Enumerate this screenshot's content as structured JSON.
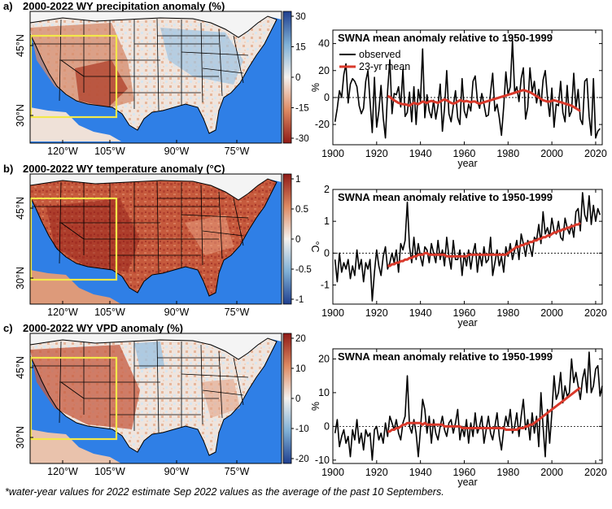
{
  "panels": [
    {
      "label": "a)",
      "map_title": "2000-2022 WY precipitation anomaly (%)",
      "colorbar": {
        "ticks": [
          "30",
          "15",
          "0",
          "-15",
          "-30"
        ],
        "scale": "brown-blue"
      },
      "lat_labels": [
        "45°N",
        "30°N"
      ],
      "lon_labels": [
        "120°W",
        "105°W",
        "90°W",
        "75°W"
      ]
    },
    {
      "label": "b)",
      "map_title": "2000-2022 WY temperature anomaly (°C)",
      "colorbar": {
        "ticks": [
          "1",
          "0.5",
          "0",
          "-0.5",
          "-1"
        ],
        "scale": "blue-red"
      },
      "lat_labels": [
        "45°N",
        "30°N"
      ],
      "lon_labels": [
        "120°W",
        "105°W",
        "90°W",
        "75°W"
      ]
    },
    {
      "label": "c)",
      "map_title": "2000-2022 WY VPD anomaly (%)",
      "colorbar": {
        "ticks": [
          "20",
          "10",
          "0",
          "-10",
          "-20"
        ],
        "scale": "blue-red"
      },
      "lat_labels": [
        "45°N",
        "30°N"
      ],
      "lon_labels": [
        "120°W",
        "105°W",
        "90°W",
        "75°W"
      ]
    }
  ],
  "colors": {
    "observed": "#000000",
    "mean": "#d9392b",
    "ocean": "#2f7fe6",
    "box": "#f3e84a",
    "red_dark": "#8f1a16",
    "red_mid": "#c85438",
    "red_light": "#ecc0a5",
    "blue_light": "#cfe3f0",
    "blue_dark": "#1f3f8f"
  },
  "legend": {
    "observed": "observed",
    "mean": "23-yr mean"
  },
  "footnote": "*water-year values for 2022 estimate Sep 2022 values as the average of the past 10 Septembers.",
  "chart_data": [
    {
      "type": "line",
      "title": "SWNA mean anomaly relative to 1950-1999",
      "xlabel": "year",
      "ylabel": "%",
      "xlim": [
        1900,
        2023
      ],
      "ylim": [
        -35,
        50
      ],
      "xticks": [
        1900,
        1920,
        1940,
        1960,
        1980,
        2000,
        2020
      ],
      "yticks": [
        -20,
        0,
        20,
        40
      ],
      "zero_line": true,
      "series": [
        {
          "name": "observed",
          "x_start": 1901,
          "values": [
            -18,
            -8,
            5,
            0,
            17,
            25,
            -4,
            10,
            14,
            12,
            8,
            -6,
            -12,
            -8,
            12,
            20,
            -3,
            -26,
            15,
            -22,
            -10,
            9,
            -15,
            -30,
            5,
            28,
            -12,
            3,
            2,
            8,
            -7,
            21,
            -14,
            -11,
            4,
            -18,
            8,
            -20,
            6,
            -3,
            36,
            -15,
            2,
            -10,
            -15,
            -2,
            -16,
            -6,
            10,
            -25,
            -8,
            20,
            -12,
            -18,
            -6,
            5,
            -15,
            -20,
            14,
            -10,
            -15,
            -5,
            -10,
            12,
            16,
            -2,
            -8,
            3,
            -5,
            -14,
            -13,
            4,
            18,
            -10,
            -5,
            -15,
            -28,
            -7,
            19,
            2,
            8,
            42,
            4,
            8,
            -3,
            14,
            22,
            -16,
            -7,
            22,
            4,
            12,
            -4,
            6,
            -6,
            13,
            20,
            0,
            -14,
            7,
            -22,
            -5,
            -6,
            12,
            -11,
            -18,
            9,
            -14,
            -10,
            18,
            -8,
            6,
            -16,
            -20,
            12,
            14,
            -14,
            -28,
            14,
            -30,
            -25,
            -23
          ]
        },
        {
          "name": "23-yr mean",
          "x_start": 1925,
          "values": [
            1,
            0.5,
            -1,
            -2,
            -3,
            -4,
            -4.5,
            -5,
            -5,
            -5.5,
            -6,
            -5,
            -4,
            -4.5,
            -5,
            -4,
            -3,
            -3.5,
            -4,
            -3,
            -2.5,
            -3,
            -3.5,
            -4,
            -3,
            -2,
            -1.5,
            -2,
            -3,
            -4,
            -4.5,
            -4,
            -3,
            -2,
            -2.5,
            -3,
            -2.5,
            -3,
            -3.5,
            -3,
            -3,
            -4,
            -4.5,
            -4,
            -3.5,
            -3,
            -2.5,
            -2,
            -1.5,
            -1,
            -0.5,
            0,
            0.5,
            1,
            1.5,
            2,
            2.5,
            3,
            3.5,
            4,
            4.5,
            5,
            5.5,
            5,
            4.5,
            4,
            3,
            2,
            1,
            0,
            -1,
            -2,
            -2.5,
            -3,
            -3,
            -2.5,
            -2,
            -2.5,
            -3,
            -3.5,
            -4,
            -4.5,
            -5,
            -5.5,
            -6,
            -7,
            -8,
            -9,
            -10
          ]
        }
      ]
    },
    {
      "type": "line",
      "title": "SWNA mean anomaly relative to 1950-1999",
      "xlabel": "year",
      "ylabel": "°C",
      "xlim": [
        1900,
        2023
      ],
      "ylim": [
        -1.6,
        2.0
      ],
      "xticks": [
        1900,
        1920,
        1940,
        1960,
        1980,
        2000,
        2020
      ],
      "yticks": [
        -1,
        0,
        1,
        2
      ],
      "zero_line": true,
      "series": [
        {
          "name": "observed",
          "x_start": 1901,
          "values": [
            -0.2,
            -0.9,
            0,
            -0.6,
            -0.3,
            -0.5,
            -0.2,
            -0.8,
            -0.4,
            -0.7,
            0.1,
            -0.5,
            -0.2,
            -0.9,
            -0.3,
            -0.5,
            -0.2,
            -1.5,
            -0.6,
            0.1,
            -0.4,
            -0.7,
            -0.1,
            0.2,
            -0.5,
            -0.3,
            0,
            -0.3,
            0.1,
            -0.6,
            0.3,
            0.1,
            0.4,
            1.6,
            0.2,
            -0.3,
            0.5,
            -0.2,
            0.3,
            -0.1,
            -0.4,
            0.2,
            0.1,
            -0.3,
            0.3,
            0,
            -0.3,
            0.4,
            -0.2,
            0.1,
            -0.4,
            0.5,
            -0.1,
            -0.5,
            0.4,
            -0.2,
            -0.2,
            0.1,
            -0.7,
            0,
            -0.4,
            0.1,
            -0.5,
            0,
            0.3,
            -0.6,
            0,
            -0.4,
            0.2,
            -0.3,
            -0.2,
            0.5,
            -0.7,
            -0.3,
            0.1,
            -0.4,
            -0.1,
            -0.6,
            0.2,
            -0.1,
            0.3,
            -0.2,
            0.1,
            0.4,
            -0.2,
            0.6,
            0.3,
            -0.1,
            0.4,
            0.2,
            -0.1,
            0.5,
            0.4,
            0.9,
            0.3,
            1.3,
            0.6,
            0.8,
            0.5,
            1.1,
            0.7,
            0.6,
            1.0,
            0.5,
            0.4,
            1.1,
            0.8,
            0.6,
            0.9,
            0.5,
            1.3,
            1.4,
            0.7,
            1.9,
            1.2,
            1.0,
            1.8,
            0.9,
            1.5,
            1.0,
            1.4,
            1.2
          ]
        },
        {
          "name": "23-yr mean",
          "x_start": 1925,
          "values": [
            -0.4,
            -0.4,
            -0.35,
            -0.35,
            -0.3,
            -0.3,
            -0.25,
            -0.25,
            -0.2,
            -0.2,
            -0.15,
            -0.15,
            -0.1,
            -0.1,
            -0.05,
            -0.05,
            -0.05,
            0,
            0,
            -0.05,
            -0.05,
            -0.05,
            -0.05,
            -0.05,
            -0.05,
            -0.05,
            -0.05,
            -0.1,
            -0.1,
            -0.1,
            -0.1,
            -0.1,
            -0.1,
            -0.1,
            -0.1,
            -0.1,
            -0.1,
            -0.05,
            -0.05,
            -0.05,
            -0.05,
            -0.05,
            -0.05,
            -0.05,
            -0.05,
            -0.05,
            -0.05,
            -0.05,
            -0.05,
            -0.05,
            -0.05,
            -0.05,
            -0.05,
            -0.05,
            -0.05,
            0,
            0.05,
            0.1,
            0.15,
            0.2,
            0.2,
            0.25,
            0.25,
            0.3,
            0.3,
            0.35,
            0.35,
            0.4,
            0.4,
            0.45,
            0.45,
            0.5,
            0.5,
            0.55,
            0.55,
            0.6,
            0.65,
            0.65,
            0.7,
            0.7,
            0.75,
            0.75,
            0.8,
            0.8,
            0.85,
            0.85,
            0.9,
            0.9,
            0.95
          ]
        }
      ]
    },
    {
      "type": "line",
      "title": "SWNA mean anomaly relative to 1950-1999",
      "xlabel": "year",
      "ylabel": "%",
      "xlim": [
        1900,
        2023
      ],
      "ylim": [
        -11,
        23
      ],
      "xticks": [
        1900,
        1920,
        1940,
        1960,
        1980,
        2000,
        2020
      ],
      "yticks": [
        -10,
        0,
        10,
        20
      ],
      "zero_line": true,
      "series": [
        {
          "name": "observed",
          "x_start": 1901,
          "values": [
            -2,
            2,
            -6,
            -3,
            -1,
            -5,
            -3,
            -9,
            -1,
            -4,
            2,
            -5,
            -2,
            -7,
            -1,
            -3,
            -2,
            -10,
            -1,
            0,
            -4,
            -2,
            -5,
            1,
            -3,
            3,
            1,
            -1,
            2,
            -2,
            -4,
            1,
            3,
            15,
            0,
            -2,
            2,
            -2,
            -9,
            -1,
            8,
            5,
            -2,
            3,
            -5,
            2,
            -2,
            -4,
            0,
            3,
            -1,
            -3,
            1,
            2,
            -2,
            1,
            5,
            -4,
            0,
            -3,
            2,
            -5,
            1,
            -3,
            4,
            -2,
            0,
            3,
            -5,
            -1,
            3,
            -2,
            -4,
            0,
            4,
            -3,
            -7,
            -1,
            3,
            0,
            5,
            -2,
            0,
            4,
            -3,
            3,
            8,
            -1,
            2,
            -4,
            4,
            -2,
            3,
            -6,
            10,
            0,
            -9,
            5,
            -5,
            4,
            15,
            8,
            10,
            16,
            7,
            12,
            9,
            10,
            20,
            13,
            16,
            12,
            8,
            14,
            17,
            10,
            22,
            10,
            12,
            17,
            18,
            9,
            12
          ]
        },
        {
          "name": "23-yr mean",
          "x_start": 1925,
          "values": [
            -1.5,
            -1.5,
            -1,
            -1,
            -0.5,
            -0.5,
            0,
            0.5,
            0.5,
            1,
            1,
            1,
            1,
            1,
            1,
            1,
            0.5,
            1,
            0.5,
            0.5,
            0.5,
            0.5,
            0.5,
            0.5,
            0.5,
            0.5,
            0,
            0,
            0,
            0,
            0,
            0,
            0,
            0,
            -0.5,
            -0.5,
            -0.5,
            -0.5,
            -0.5,
            -0.5,
            -0.5,
            -0.5,
            -0.5,
            -0.5,
            -0.5,
            -0.5,
            -0.5,
            -0.5,
            -0.5,
            -0.5,
            -0.5,
            -0.5,
            -0.5,
            -0.5,
            -1,
            -1,
            -1,
            -1,
            -1,
            -1,
            -0.5,
            -0.5,
            -0.5,
            0,
            0,
            0.5,
            0.5,
            1,
            1.5,
            2,
            2.5,
            3,
            3.5,
            4,
            4.5,
            5,
            5.5,
            6,
            6.5,
            7,
            7.5,
            8,
            8.5,
            9,
            9.5,
            10,
            10.5,
            11,
            11.5
          ]
        }
      ]
    }
  ]
}
